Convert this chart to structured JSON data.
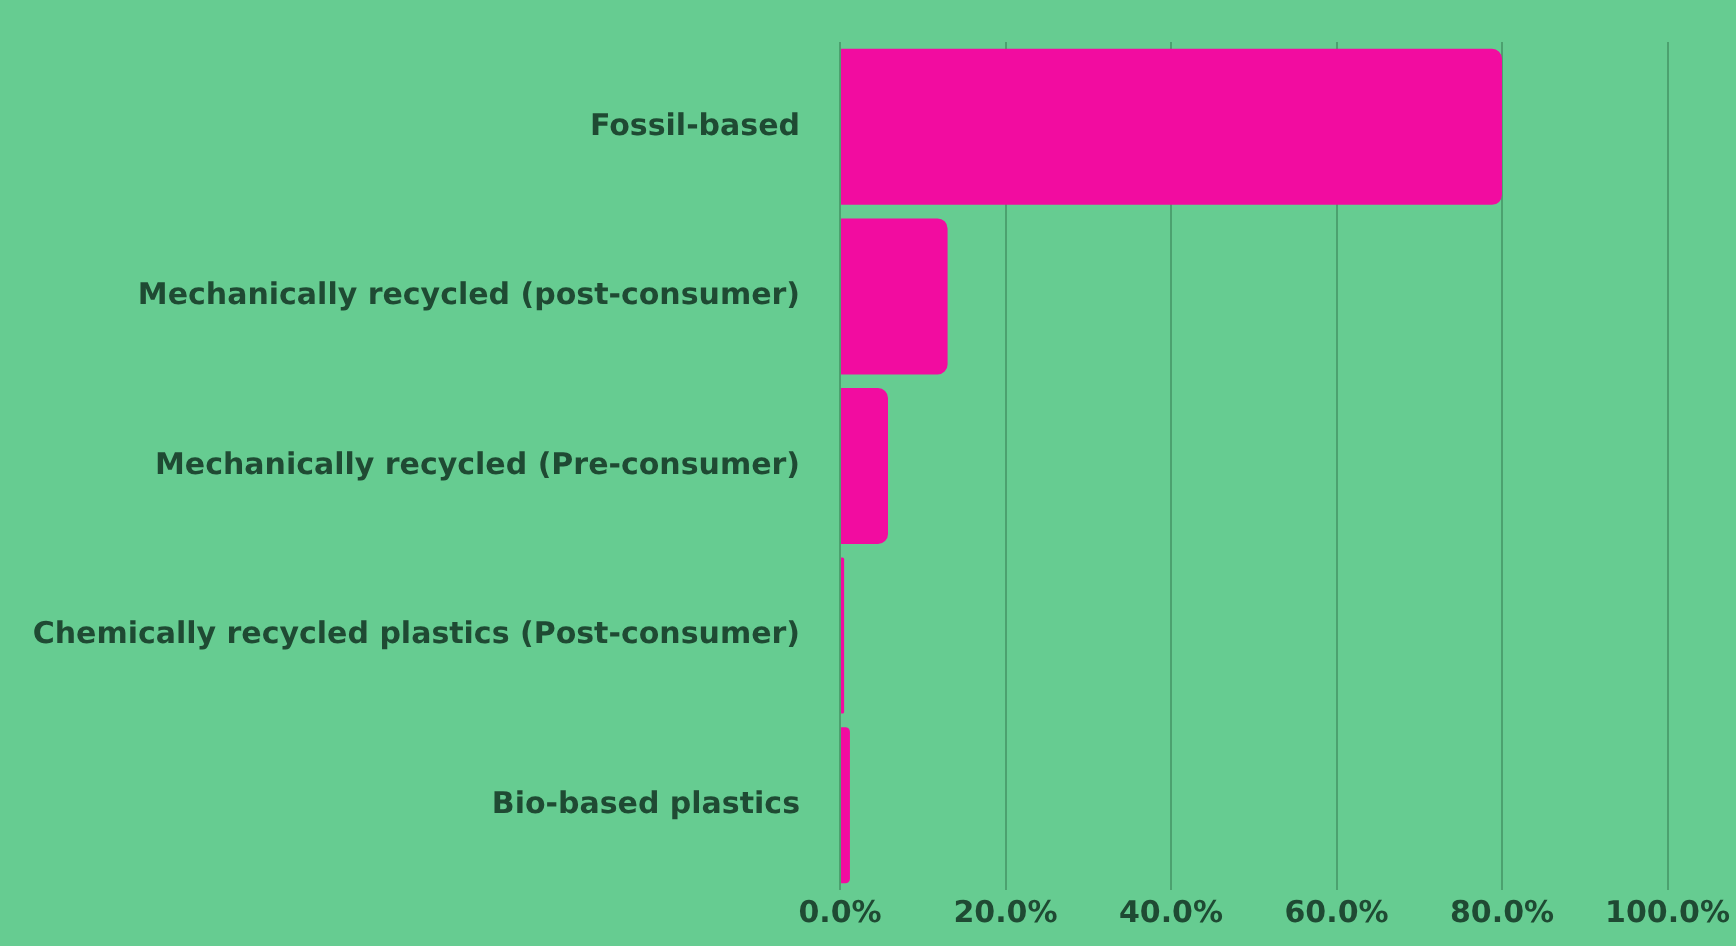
{
  "chart_data": {
    "type": "bar",
    "orientation": "horizontal",
    "categories": [
      "Fossil-based",
      "Mechanically recycled (post-consumer)",
      "Mechanically recycled (Pre-consumer)",
      "Chemically recycled plastics (Post-consumer)",
      "Bio-based plastics"
    ],
    "values": [
      80,
      13,
      5.8,
      0.5,
      1.2
    ],
    "color": "#f20ca0",
    "xlim": [
      0,
      100
    ],
    "xticks": [
      {
        "value": 0,
        "label": "0.0%"
      },
      {
        "value": 20,
        "label": "20.0%"
      },
      {
        "value": 40,
        "label": "40.0%"
      },
      {
        "value": 60,
        "label": "60.0%"
      },
      {
        "value": 80,
        "label": "80.0%"
      },
      {
        "value": 100,
        "label": "100.0%"
      }
    ],
    "grid": "x",
    "legend": false
  }
}
